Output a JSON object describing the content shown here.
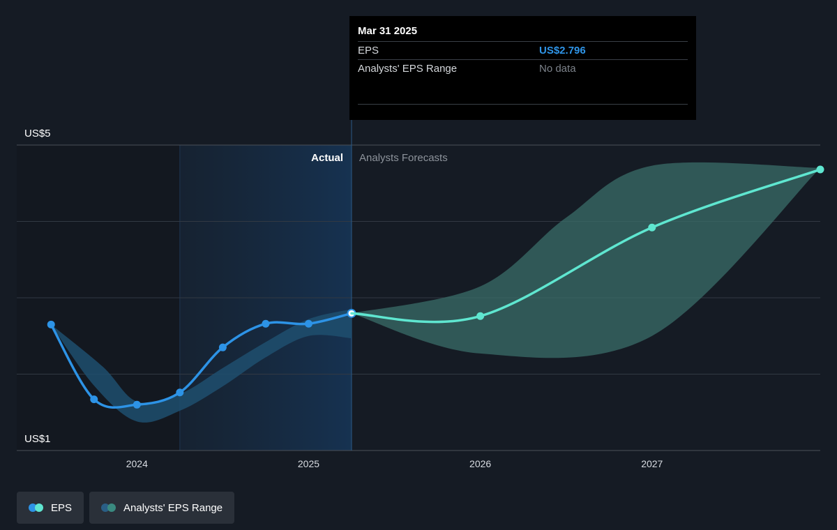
{
  "chart_data": {
    "type": "line",
    "y_axis": {
      "unit": "US$",
      "min": 1,
      "max": 5,
      "labels": [
        "US$5",
        "US$1"
      ]
    },
    "x_axis": {
      "min": 2023.3,
      "max": 2027.98,
      "ticks": [
        2024,
        2025,
        2026,
        2027
      ],
      "tick_labels": [
        "2024",
        "2025",
        "2026",
        "2027"
      ]
    },
    "grid": true,
    "divider_x": 2025.25,
    "highlight_band": [
      2024.25,
      2025.25
    ],
    "region_labels": {
      "actual": "Actual",
      "forecast": "Analysts Forecasts"
    },
    "series": [
      {
        "name": "EPS",
        "kind": "actual",
        "color": "#2d93e6",
        "points": [
          [
            2023.5,
            2.65
          ],
          [
            2023.75,
            1.67
          ],
          [
            2024.0,
            1.6
          ],
          [
            2024.25,
            1.76
          ],
          [
            2024.5,
            2.35
          ],
          [
            2024.75,
            2.66
          ],
          [
            2025.0,
            2.66
          ],
          [
            2025.25,
            2.796
          ]
        ]
      },
      {
        "name": "EPS",
        "kind": "forecast",
        "color": "#5fe6d0",
        "points": [
          [
            2025.25,
            2.796
          ],
          [
            2026.0,
            2.76
          ],
          [
            2027.0,
            3.92
          ],
          [
            2027.98,
            4.68
          ]
        ]
      },
      {
        "name": "Analysts' EPS Range",
        "kind": "range",
        "color": "#1f4f6e",
        "upper": [
          [
            2023.5,
            2.65
          ],
          [
            2023.8,
            2.1
          ],
          [
            2024.0,
            1.64
          ],
          [
            2024.25,
            1.74
          ],
          [
            2024.5,
            2.08
          ],
          [
            2024.75,
            2.42
          ],
          [
            2025.0,
            2.72
          ],
          [
            2025.25,
            2.85
          ]
        ],
        "lower": [
          [
            2023.5,
            2.65
          ],
          [
            2023.75,
            1.85
          ],
          [
            2024.0,
            1.38
          ],
          [
            2024.25,
            1.52
          ],
          [
            2024.5,
            1.84
          ],
          [
            2024.75,
            2.22
          ],
          [
            2025.0,
            2.5
          ],
          [
            2025.25,
            2.47
          ]
        ]
      },
      {
        "name": "Analysts' EPS Range",
        "kind": "forecast-range",
        "color": "#3a6e68",
        "upper": [
          [
            2025.25,
            2.796
          ],
          [
            2026.0,
            3.15
          ],
          [
            2026.5,
            4.05
          ],
          [
            2027.0,
            4.73
          ],
          [
            2027.98,
            4.7
          ]
        ],
        "lower": [
          [
            2025.25,
            2.796
          ],
          [
            2026.0,
            2.27
          ],
          [
            2027.0,
            2.5
          ],
          [
            2027.98,
            4.7
          ]
        ]
      }
    ]
  },
  "tooltip": {
    "date": "Mar 31 2025",
    "rows": [
      {
        "label": "EPS",
        "value": "US$2.796"
      },
      {
        "label": "Analysts' EPS Range",
        "value": "No data"
      }
    ]
  },
  "legend": [
    {
      "label": "EPS",
      "colors": [
        "#2d93e6",
        "#5fe6d0"
      ]
    },
    {
      "label": "Analysts' EPS Range",
      "colors": [
        "#2a5f86",
        "#3a8a80"
      ]
    }
  ]
}
